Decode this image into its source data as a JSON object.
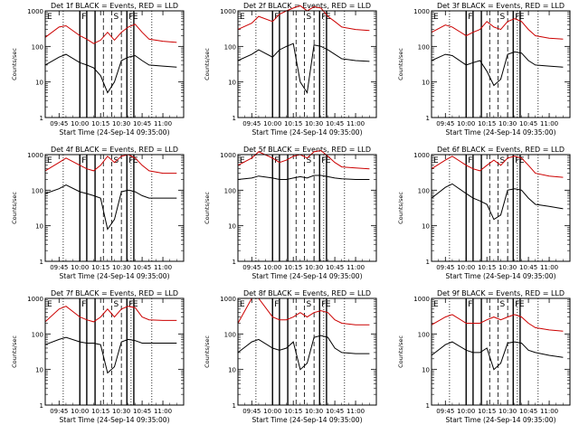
{
  "chart_data": {
    "type": "line",
    "x_unit": "time (HH:MM)",
    "xlabel": "Start Time (24-Sep-14 09:35:00)",
    "ylabel": "Counts/sec",
    "y_scale": "log",
    "ylim": [
      1,
      1000
    ],
    "xlim": [
      "09:35",
      "11:15"
    ],
    "x_tick_labels": [
      "09:45",
      "10:00",
      "10:15",
      "10:30",
      "10:45",
      "11:00"
    ],
    "y_tick_labels": [
      "1",
      "10",
      "100",
      "1000"
    ],
    "colors": {
      "events": "#000000",
      "lld": "#cc0000"
    },
    "interval_letters": [
      "E",
      "F",
      "S",
      "F",
      "E"
    ],
    "dotted_markers": [
      "09:48",
      "10:37",
      "10:52"
    ],
    "dashed_markers": [
      "10:17",
      "10:23",
      "10:30"
    ],
    "solid_markers": [
      "10:00",
      "10:05",
      "10:11",
      "10:34",
      "10:39"
    ],
    "panels": [
      {
        "title": "Det 1f BLACK = Events, RED = LLD",
        "series": [
          {
            "name": "RED = LLD",
            "color": "#cc0000",
            "x": [
              "09:35",
              "09:45",
              "09:50",
              "10:00",
              "10:05",
              "10:10",
              "10:15",
              "10:20",
              "10:25",
              "10:30",
              "10:35",
              "10:40",
              "10:45",
              "10:50",
              "11:00",
              "11:10"
            ],
            "y": [
              180,
              350,
              380,
              200,
              160,
              120,
              150,
              250,
              150,
              250,
              350,
              420,
              250,
              160,
              140,
              130
            ]
          },
          {
            "name": "BLACK = Events",
            "color": "#000000",
            "x": [
              "09:35",
              "09:45",
              "09:50",
              "10:00",
              "10:05",
              "10:10",
              "10:15",
              "10:20",
              "10:25",
              "10:30",
              "10:35",
              "10:40",
              "10:45",
              "10:50",
              "11:00",
              "11:10"
            ],
            "y": [
              30,
              50,
              60,
              35,
              30,
              25,
              15,
              5,
              10,
              40,
              50,
              55,
              40,
              30,
              28,
              26
            ]
          }
        ]
      },
      {
        "title": "Det 2f BLACK = Events, RED = LLD",
        "series": [
          {
            "name": "RED = LLD",
            "color": "#cc0000",
            "x": [
              "09:35",
              "09:45",
              "09:50",
              "10:00",
              "10:05",
              "10:10",
              "10:15",
              "10:20",
              "10:25",
              "10:30",
              "10:35",
              "10:40",
              "10:45",
              "10:50",
              "11:00",
              "11:10"
            ],
            "y": [
              300,
              450,
              700,
              500,
              800,
              1000,
              1200,
              1400,
              1000,
              1300,
              1200,
              700,
              500,
              350,
              300,
              280
            ]
          },
          {
            "name": "BLACK = Events",
            "color": "#000000",
            "x": [
              "09:35",
              "09:45",
              "09:50",
              "10:00",
              "10:05",
              "10:10",
              "10:15",
              "10:20",
              "10:25",
              "10:30",
              "10:35",
              "10:40",
              "10:45",
              "10:50",
              "11:00",
              "11:10"
            ],
            "y": [
              40,
              60,
              80,
              50,
              80,
              100,
              120,
              10,
              5,
              110,
              100,
              80,
              60,
              45,
              40,
              38
            ]
          }
        ]
      },
      {
        "title": "Det 3f BLACK = Events, RED = LLD",
        "series": [
          {
            "name": "RED = LLD",
            "color": "#cc0000",
            "x": [
              "09:35",
              "09:45",
              "09:50",
              "10:00",
              "10:05",
              "10:10",
              "10:15",
              "10:20",
              "10:25",
              "10:30",
              "10:35",
              "10:40",
              "10:45",
              "10:50",
              "11:00",
              "11:10"
            ],
            "y": [
              250,
              400,
              350,
              200,
              250,
              300,
              500,
              350,
              300,
              500,
              600,
              500,
              300,
              200,
              170,
              160
            ]
          },
          {
            "name": "BLACK = Events",
            "color": "#000000",
            "x": [
              "09:35",
              "09:45",
              "09:50",
              "10:00",
              "10:05",
              "10:10",
              "10:15",
              "10:20",
              "10:25",
              "10:30",
              "10:35",
              "10:40",
              "10:45",
              "10:50",
              "11:00",
              "11:10"
            ],
            "y": [
              40,
              60,
              55,
              30,
              35,
              40,
              20,
              8,
              12,
              60,
              70,
              65,
              40,
              30,
              28,
              26
            ]
          }
        ]
      },
      {
        "title": "Det 4f BLACK = Events, RED = LLD",
        "series": [
          {
            "name": "RED = LLD",
            "color": "#cc0000",
            "x": [
              "09:35",
              "09:45",
              "09:50",
              "10:00",
              "10:05",
              "10:10",
              "10:15",
              "10:20",
              "10:25",
              "10:30",
              "10:35",
              "10:40",
              "10:45",
              "10:50",
              "11:00",
              "11:10"
            ],
            "y": [
              350,
              600,
              800,
              500,
              400,
              350,
              500,
              900,
              600,
              900,
              1000,
              800,
              500,
              350,
              300,
              300
            ]
          },
          {
            "name": "BLACK = Events",
            "color": "#000000",
            "x": [
              "09:35",
              "09:45",
              "09:50",
              "10:00",
              "10:05",
              "10:10",
              "10:15",
              "10:20",
              "10:25",
              "10:30",
              "10:35",
              "10:40",
              "10:45",
              "10:50",
              "11:00",
              "11:10"
            ],
            "y": [
              80,
              110,
              140,
              90,
              80,
              70,
              60,
              8,
              15,
              90,
              100,
              90,
              70,
              60,
              60,
              60
            ]
          }
        ]
      },
      {
        "title": "Det 5f BLACK = Events, RED = LLD",
        "series": [
          {
            "name": "RED = LLD",
            "color": "#cc0000",
            "x": [
              "09:35",
              "09:45",
              "09:50",
              "10:00",
              "10:05",
              "10:10",
              "10:15",
              "10:20",
              "10:25",
              "10:30",
              "10:35",
              "10:40",
              "10:45",
              "10:50",
              "11:00",
              "11:10"
            ],
            "y": [
              500,
              800,
              1200,
              800,
              600,
              700,
              900,
              1000,
              800,
              1200,
              1300,
              900,
              600,
              450,
              420,
              400
            ]
          },
          {
            "name": "BLACK = Events",
            "color": "#000000",
            "x": [
              "09:35",
              "09:45",
              "09:50",
              "10:00",
              "10:05",
              "10:10",
              "10:15",
              "10:20",
              "10:25",
              "10:30",
              "10:35",
              "10:40",
              "10:45",
              "10:50",
              "11:00",
              "11:10"
            ],
            "y": [
              200,
              220,
              250,
              220,
              200,
              200,
              220,
              240,
              220,
              260,
              260,
              240,
              220,
              210,
              200,
              200
            ]
          }
        ]
      },
      {
        "title": "Det 6f BLACK = Events, RED = LLD",
        "series": [
          {
            "name": "RED = LLD",
            "color": "#cc0000",
            "x": [
              "09:35",
              "09:45",
              "09:50",
              "10:00",
              "10:05",
              "10:10",
              "10:15",
              "10:20",
              "10:25",
              "10:30",
              "10:35",
              "10:40",
              "10:45",
              "10:50",
              "11:00",
              "11:10"
            ],
            "y": [
              400,
              700,
              900,
              500,
              400,
              350,
              500,
              700,
              500,
              800,
              900,
              800,
              500,
              300,
              250,
              230
            ]
          },
          {
            "name": "BLACK = Events",
            "color": "#000000",
            "x": [
              "09:35",
              "09:45",
              "09:50",
              "10:00",
              "10:05",
              "10:10",
              "10:15",
              "10:20",
              "10:25",
              "10:30",
              "10:35",
              "10:40",
              "10:45",
              "10:50",
              "11:00",
              "11:10"
            ],
            "y": [
              60,
              120,
              150,
              80,
              60,
              50,
              40,
              15,
              20,
              100,
              110,
              100,
              60,
              40,
              35,
              30
            ]
          }
        ]
      },
      {
        "title": "Det 7f BLACK = Events, RED = LLD",
        "series": [
          {
            "name": "RED = LLD",
            "color": "#cc0000",
            "x": [
              "09:35",
              "09:45",
              "09:50",
              "10:00",
              "10:05",
              "10:10",
              "10:15",
              "10:20",
              "10:25",
              "10:30",
              "10:35",
              "10:40",
              "10:45",
              "10:50",
              "11:00",
              "11:10"
            ],
            "y": [
              220,
              500,
              600,
              300,
              250,
              220,
              300,
              500,
              300,
              500,
              600,
              550,
              300,
              250,
              240,
              240
            ]
          },
          {
            "name": "BLACK = Events",
            "color": "#000000",
            "x": [
              "09:35",
              "09:45",
              "09:50",
              "10:00",
              "10:05",
              "10:10",
              "10:15",
              "10:20",
              "10:25",
              "10:30",
              "10:35",
              "10:40",
              "10:45",
              "10:50",
              "11:00",
              "11:10"
            ],
            "y": [
              50,
              70,
              80,
              60,
              55,
              55,
              50,
              8,
              12,
              60,
              70,
              65,
              55,
              55,
              55,
              55
            ]
          }
        ]
      },
      {
        "title": "Det 8f BLACK = Events, RED = LLD",
        "series": [
          {
            "name": "RED = LLD",
            "color": "#cc0000",
            "x": [
              "09:35",
              "09:45",
              "09:50",
              "10:00",
              "10:05",
              "10:10",
              "10:15",
              "10:20",
              "10:25",
              "10:30",
              "10:35",
              "10:40",
              "10:45",
              "10:50",
              "11:00",
              "11:10"
            ],
            "y": [
              200,
              1000,
              1000,
              300,
              250,
              250,
              300,
              400,
              300,
              400,
              450,
              400,
              250,
              200,
              180,
              180
            ]
          },
          {
            "name": "BLACK = Events",
            "color": "#000000",
            "x": [
              "09:35",
              "09:45",
              "09:50",
              "10:00",
              "10:05",
              "10:10",
              "10:15",
              "10:20",
              "10:25",
              "10:30",
              "10:35",
              "10:40",
              "10:45",
              "10:50",
              "11:00",
              "11:10"
            ],
            "y": [
              30,
              60,
              70,
              40,
              35,
              40,
              60,
              10,
              15,
              80,
              90,
              80,
              40,
              30,
              28,
              28
            ]
          }
        ]
      },
      {
        "title": "Det 9f BLACK = Events, RED = LLD",
        "series": [
          {
            "name": "RED = LLD",
            "color": "#cc0000",
            "x": [
              "09:35",
              "09:45",
              "09:50",
              "10:00",
              "10:05",
              "10:10",
              "10:15",
              "10:20",
              "10:25",
              "10:30",
              "10:35",
              "10:40",
              "10:45",
              "10:50",
              "11:00",
              "11:10"
            ],
            "y": [
              180,
              300,
              350,
              200,
              200,
              200,
              250,
              300,
              250,
              300,
              350,
              300,
              200,
              150,
              130,
              120
            ]
          },
          {
            "name": "BLACK = Events",
            "color": "#000000",
            "x": [
              "09:35",
              "09:45",
              "09:50",
              "10:00",
              "10:05",
              "10:10",
              "10:15",
              "10:20",
              "10:25",
              "10:30",
              "10:35",
              "10:40",
              "10:45",
              "10:50",
              "11:00",
              "11:10"
            ],
            "y": [
              25,
              50,
              60,
              35,
              30,
              30,
              40,
              10,
              15,
              55,
              60,
              55,
              35,
              30,
              25,
              22
            ]
          }
        ]
      }
    ]
  }
}
